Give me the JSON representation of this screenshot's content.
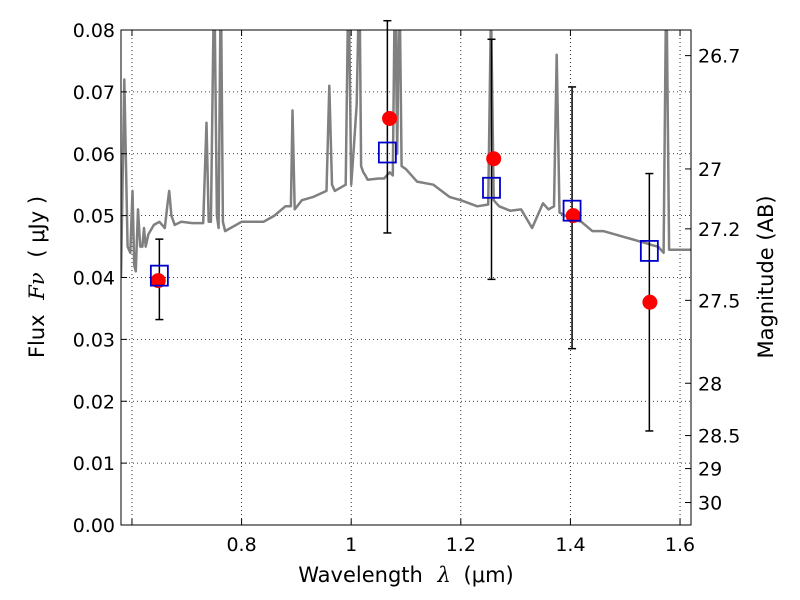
{
  "chart_data": {
    "type": "scatter",
    "xlabel": "Wavelength",
    "xlabel_symbol": "λ",
    "xlabel_unit": "(μm)",
    "ylabel": "Flux",
    "ylabel_symbol": "Fν",
    "ylabel_unit": "( μJy )",
    "y2label": "Magnitude (AB)",
    "xlim": [
      0.58,
      1.62
    ],
    "ylim": [
      0.0,
      0.08
    ],
    "grid": true,
    "x_ticks": [
      {
        "value": 0.6,
        "label": ""
      },
      {
        "value": 0.8,
        "label": "0.8"
      },
      {
        "value": 1.0,
        "label": "1"
      },
      {
        "value": 1.2,
        "label": "1.2"
      },
      {
        "value": 1.4,
        "label": "1.4"
      },
      {
        "value": 1.6,
        "label": "1.6"
      }
    ],
    "y_ticks": [
      {
        "value": 0.0,
        "label": "0.00"
      },
      {
        "value": 0.01,
        "label": "0.01"
      },
      {
        "value": 0.02,
        "label": "0.02"
      },
      {
        "value": 0.03,
        "label": "0.03"
      },
      {
        "value": 0.04,
        "label": "0.04"
      },
      {
        "value": 0.05,
        "label": "0.05"
      },
      {
        "value": 0.06,
        "label": "0.06"
      },
      {
        "value": 0.07,
        "label": "0.07"
      },
      {
        "value": 0.08,
        "label": "0.08"
      }
    ],
    "y2_ticks": [
      {
        "value": 26.7,
        "label": "26.7"
      },
      {
        "value": 27.0,
        "label": "27"
      },
      {
        "value": 27.2,
        "label": "27.2"
      },
      {
        "value": 27.5,
        "label": "27.5"
      },
      {
        "value": 28.0,
        "label": "28"
      },
      {
        "value": 28.5,
        "label": "28.5"
      },
      {
        "value": 29.0,
        "label": "29"
      },
      {
        "value": 30.0,
        "label": "30"
      }
    ],
    "series": [
      {
        "kind": "line",
        "color": "#808080",
        "x": [
          0.58,
          0.586,
          0.592,
          0.597,
          0.601,
          0.604,
          0.607,
          0.611,
          0.615,
          0.619,
          0.622,
          0.625,
          0.63,
          0.64,
          0.65,
          0.66,
          0.665,
          0.668,
          0.672,
          0.678,
          0.69,
          0.71,
          0.73,
          0.736,
          0.74,
          0.744,
          0.75,
          0.755,
          0.758,
          0.762,
          0.766,
          0.77,
          0.8,
          0.84,
          0.86,
          0.88,
          0.89,
          0.893,
          0.897,
          0.91,
          0.93,
          0.955,
          0.96,
          0.965,
          0.97,
          0.99,
          0.995,
          1.0,
          1.004,
          1.01,
          1.015,
          1.018,
          1.022,
          1.026,
          1.03,
          1.05,
          1.06,
          1.07,
          1.076,
          1.08,
          1.084,
          1.088,
          1.092,
          1.1,
          1.12,
          1.15,
          1.18,
          1.2,
          1.23,
          1.25,
          1.255,
          1.26,
          1.265,
          1.27,
          1.29,
          1.31,
          1.33,
          1.35,
          1.36,
          1.37,
          1.375,
          1.38,
          1.39,
          1.4,
          1.42,
          1.44,
          1.46,
          1.48,
          1.5,
          1.52,
          1.54,
          1.55,
          1.56,
          1.57,
          1.575,
          1.58,
          1.59,
          1.6,
          1.62
        ],
        "y": [
          0.04,
          0.072,
          0.045,
          0.044,
          0.054,
          0.042,
          0.041,
          0.051,
          0.045,
          0.045,
          0.048,
          0.045,
          0.047,
          0.0485,
          0.049,
          0.048,
          0.052,
          0.054,
          0.05,
          0.0485,
          0.049,
          0.0488,
          0.0488,
          0.065,
          0.049,
          0.049,
          0.09,
          0.05,
          0.048,
          0.09,
          0.049,
          0.0475,
          0.049,
          0.049,
          0.05,
          0.0515,
          0.0515,
          0.067,
          0.051,
          0.0525,
          0.053,
          0.054,
          0.071,
          0.055,
          0.054,
          0.055,
          0.09,
          0.055,
          0.06,
          0.068,
          0.09,
          0.058,
          0.057,
          0.0565,
          0.0558,
          0.056,
          0.056,
          0.057,
          0.0565,
          0.09,
          0.06,
          0.09,
          0.058,
          0.0575,
          0.0555,
          0.055,
          0.053,
          0.0525,
          0.0515,
          0.0518,
          0.084,
          0.0525,
          0.052,
          0.0515,
          0.0508,
          0.051,
          0.048,
          0.052,
          0.051,
          0.0515,
          0.076,
          0.0505,
          0.05,
          0.0495,
          0.049,
          0.0475,
          0.0475,
          0.047,
          0.0465,
          0.046,
          0.0455,
          0.0452,
          0.045,
          0.044,
          0.09,
          0.0445,
          0.0445,
          0.0445,
          0.0445
        ]
      },
      {
        "kind": "points",
        "marker": "circle",
        "color": "#ff0000",
        "x": [
          0.648,
          1.07,
          1.26,
          1.405,
          1.545
        ],
        "y": [
          0.0395,
          0.0657,
          0.0592,
          0.05,
          0.036
        ]
      },
      {
        "kind": "points",
        "marker": "open-square",
        "color": "#0000cc",
        "x": [
          0.65,
          1.066,
          1.256,
          1.403,
          1.544
        ],
        "y": [
          0.0403,
          0.0602,
          0.0545,
          0.0508,
          0.0443
        ],
        "err_low": [
          0.0332,
          0.0472,
          0.0397,
          0.0285,
          0.0152
        ],
        "err_high": [
          0.0462,
          0.0815,
          0.0785,
          0.0708,
          0.0568
        ]
      }
    ]
  }
}
